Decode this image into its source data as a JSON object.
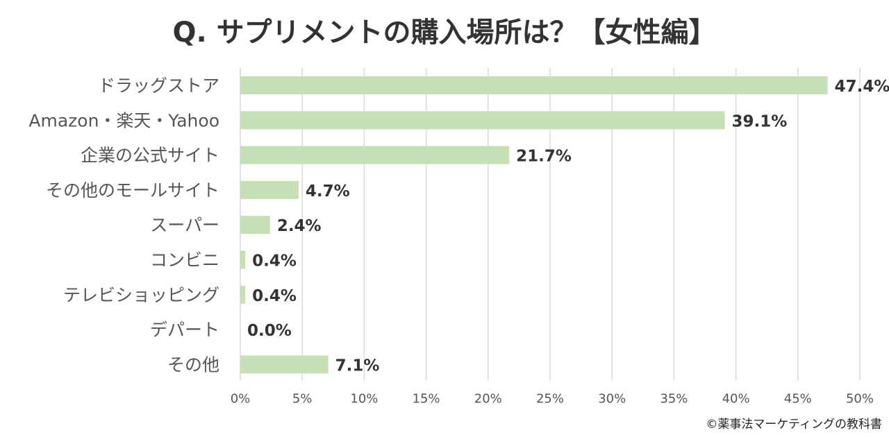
{
  "chart_data": {
    "type": "bar",
    "orientation": "horizontal",
    "title": "Q. サプリメントの購入場所は？【女性編】",
    "categories": [
      "ドラッグストア",
      "Amazon・楽天・Yahoo",
      "企業の公式サイト",
      "その他のモールサイト",
      "スーパー",
      "コンビニ",
      "テレビショッピング",
      "デパート",
      "その他"
    ],
    "values": [
      47.4,
      39.1,
      21.7,
      4.7,
      2.4,
      0.4,
      0.4,
      0.0,
      7.1
    ],
    "value_labels": [
      "47.4%",
      "39.1%",
      "21.7%",
      "4.7%",
      "2.4%",
      "0.4%",
      "0.4%",
      "0.0%",
      "7.1%"
    ],
    "xlim": [
      0,
      50
    ],
    "xticks": [
      0,
      5,
      10,
      15,
      20,
      25,
      30,
      35,
      40,
      45,
      50
    ],
    "xtick_labels": [
      "0%",
      "5%",
      "10%",
      "15%",
      "20%",
      "25%",
      "30%",
      "35%",
      "40%",
      "45%",
      "50%"
    ],
    "grid": true,
    "bar_color": "#c5e0b4",
    "grid_color": "#d9d9d9"
  },
  "credit": "©薬事法マーケティングの教科書"
}
